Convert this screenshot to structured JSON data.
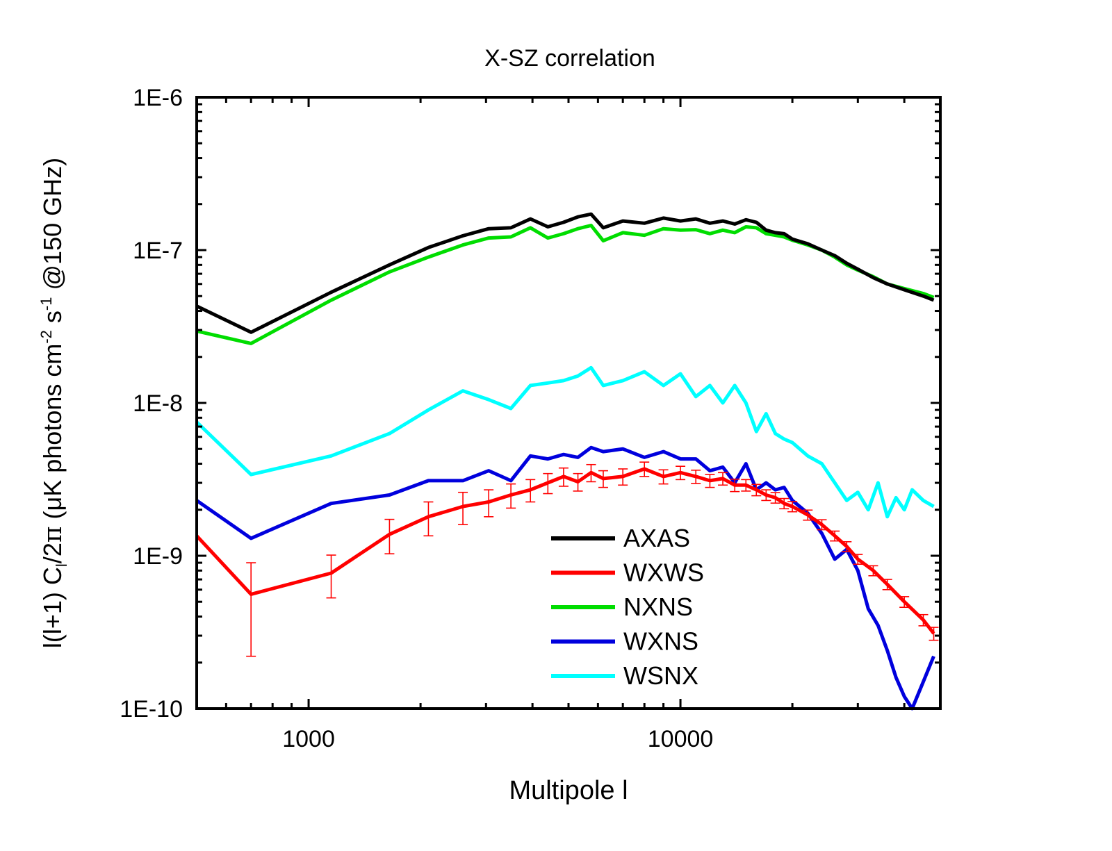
{
  "chart_data": {
    "type": "line",
    "title": "X-SZ correlation",
    "xlabel": "Multipole l",
    "ylabel": "l(l+1) C_l/2π (μK photons cm^-2 s^-1 @150 GHz)",
    "ylabel_parts": {
      "a": "l(l+1) C",
      "sub": "l",
      "b": "/2",
      "pi": "π",
      "c": " (μK photons cm",
      "sup1": "-2",
      "d": " s",
      "sup2": "-1",
      "e": " @150 GHz)"
    },
    "xscale": "log",
    "yscale": "log",
    "xlim": [
      500,
      50000
    ],
    "ylim": [
      1e-10,
      1e-06
    ],
    "x_ticks": [
      {
        "value": 1000,
        "label": "1000"
      },
      {
        "value": 10000,
        "label": "10000"
      }
    ],
    "y_ticks": [
      {
        "value": 1e-10,
        "label": "1E-10"
      },
      {
        "value": 1e-09,
        "label": "1E-9"
      },
      {
        "value": 1e-08,
        "label": "1E-8"
      },
      {
        "value": 1e-07,
        "label": "1E-7"
      },
      {
        "value": 1e-06,
        "label": "1E-6"
      }
    ],
    "legend_position": "lower-center",
    "series": [
      {
        "name": "AXAS",
        "color": "#000000",
        "x": [
          500,
          700,
          1150,
          1650,
          2100,
          2600,
          3050,
          3500,
          3950,
          4400,
          4850,
          5300,
          5750,
          6200,
          7000,
          8000,
          9000,
          10000,
          11000,
          12000,
          13000,
          14000,
          15000,
          16000,
          17000,
          18000,
          19000,
          20000,
          22000,
          24000,
          26000,
          28000,
          30000,
          33000,
          36000,
          40000,
          45000,
          48000
        ],
        "values": [
          4.3e-08,
          2.9e-08,
          5.3e-08,
          8e-08,
          1.04e-07,
          1.24e-07,
          1.38e-07,
          1.4e-07,
          1.6e-07,
          1.42e-07,
          1.52e-07,
          1.65e-07,
          1.72e-07,
          1.4e-07,
          1.55e-07,
          1.5e-07,
          1.62e-07,
          1.55e-07,
          1.6e-07,
          1.5e-07,
          1.55e-07,
          1.48e-07,
          1.58e-07,
          1.52e-07,
          1.35e-07,
          1.3e-07,
          1.28e-07,
          1.18e-07,
          1.1e-07,
          1e-07,
          9.2e-08,
          8.2e-08,
          7.5e-08,
          6.6e-08,
          6e-08,
          5.5e-08,
          5e-08,
          4.7e-08
        ]
      },
      {
        "name": "WXWS",
        "color": "#ff0000",
        "x": [
          500,
          700,
          1150,
          1650,
          2100,
          2600,
          3050,
          3500,
          3950,
          4400,
          4850,
          5300,
          5750,
          6200,
          7000,
          8000,
          9000,
          10000,
          11000,
          12000,
          13000,
          14000,
          15000,
          16000,
          17000,
          18000,
          19000,
          20000,
          22000,
          24000,
          26000,
          28000,
          30000,
          33000,
          36000,
          40000,
          45000,
          48000
        ],
        "values": [
          1.35e-09,
          5.6e-10,
          7.7e-10,
          1.38e-09,
          1.8e-09,
          2.1e-09,
          2.25e-09,
          2.5e-09,
          2.7e-09,
          3e-09,
          3.3e-09,
          3.05e-09,
          3.5e-09,
          3.2e-09,
          3.3e-09,
          3.7e-09,
          3.3e-09,
          3.5e-09,
          3.3e-09,
          3.1e-09,
          3.2e-09,
          2.9e-09,
          2.9e-09,
          2.7e-09,
          2.5e-09,
          2.4e-09,
          2.2e-09,
          2.1e-09,
          1.85e-09,
          1.6e-09,
          1.35e-09,
          1.15e-09,
          9.5e-10,
          8e-10,
          6.5e-10,
          5e-10,
          3.8e-10,
          3.1e-10
        ],
        "errors": [
          0,
          3.4e-10,
          2.4e-10,
          3.5e-10,
          4.5e-10,
          5e-10,
          4.5e-10,
          4.5e-10,
          4.5e-10,
          4.5e-10,
          4.5e-10,
          4e-10,
          4.5e-10,
          4e-10,
          4e-10,
          4e-10,
          3.5e-10,
          3.5e-10,
          3.3e-10,
          3e-10,
          3e-10,
          2.7e-10,
          2.5e-10,
          2.3e-10,
          2e-10,
          1.9e-10,
          1.7e-10,
          1.6e-10,
          1.4e-10,
          1.2e-10,
          1e-10,
          8.5e-11,
          7e-11,
          6e-11,
          5e-11,
          4e-11,
          3.2e-11,
          3e-11
        ]
      },
      {
        "name": "NXNS",
        "color": "#00dd00",
        "x": [
          500,
          700,
          1150,
          1650,
          2100,
          2600,
          3050,
          3500,
          3950,
          4400,
          4850,
          5300,
          5750,
          6200,
          7000,
          8000,
          9000,
          10000,
          11000,
          12000,
          13000,
          14000,
          15000,
          16000,
          17000,
          18000,
          19000,
          20000,
          22000,
          24000,
          26000,
          28000,
          30000,
          33000,
          36000,
          40000,
          45000,
          48000
        ],
        "values": [
          2.95e-08,
          2.45e-08,
          4.7e-08,
          7.2e-08,
          9e-08,
          1.08e-07,
          1.2e-07,
          1.22e-07,
          1.4e-07,
          1.2e-07,
          1.28e-07,
          1.38e-07,
          1.45e-07,
          1.15e-07,
          1.3e-07,
          1.25e-07,
          1.38e-07,
          1.35e-07,
          1.36e-07,
          1.28e-07,
          1.35e-07,
          1.3e-07,
          1.42e-07,
          1.4e-07,
          1.28e-07,
          1.25e-07,
          1.22e-07,
          1.16e-07,
          1.08e-07,
          1e-07,
          9e-08,
          8e-08,
          7.4e-08,
          6.7e-08,
          6e-08,
          5.6e-08,
          5.2e-08,
          4.9e-08
        ]
      },
      {
        "name": "WXNS",
        "color": "#0000dd",
        "x": [
          500,
          700,
          1150,
          1650,
          2100,
          2600,
          3050,
          3500,
          3950,
          4400,
          4850,
          5300,
          5750,
          6200,
          7000,
          8000,
          9000,
          10000,
          11000,
          12000,
          13000,
          14000,
          15000,
          16000,
          17000,
          18000,
          19000,
          20000,
          22000,
          24000,
          26000,
          28000,
          30000,
          32000,
          34000,
          36000,
          38000,
          40000,
          42000,
          45000,
          48000
        ],
        "values": [
          2.3e-09,
          1.3e-09,
          2.2e-09,
          2.5e-09,
          3.1e-09,
          3.1e-09,
          3.6e-09,
          3.1e-09,
          4.5e-09,
          4.3e-09,
          4.6e-09,
          4.4e-09,
          5.1e-09,
          4.8e-09,
          5e-09,
          4.4e-09,
          4.8e-09,
          4.3e-09,
          4.3e-09,
          3.6e-09,
          3.8e-09,
          3e-09,
          4e-09,
          2.7e-09,
          3e-09,
          2.7e-09,
          2.8e-09,
          2.3e-09,
          1.9e-09,
          1.4e-09,
          9.5e-10,
          1.1e-09,
          8e-10,
          4.5e-10,
          3.5e-10,
          2.4e-10,
          1.6e-10,
          1.2e-10,
          1e-10,
          1.5e-10,
          2.2e-10
        ]
      },
      {
        "name": "WSNX",
        "color": "#00ffff",
        "x": [
          500,
          700,
          1150,
          1650,
          2100,
          2600,
          3050,
          3500,
          3950,
          4400,
          4850,
          5300,
          5750,
          6200,
          7000,
          8000,
          9000,
          10000,
          11000,
          12000,
          13000,
          14000,
          15000,
          16000,
          17000,
          18000,
          19000,
          20000,
          22000,
          24000,
          26000,
          28000,
          30000,
          32000,
          34000,
          36000,
          38000,
          40000,
          42000,
          45000,
          48000
        ],
        "values": [
          7.5e-09,
          3.4e-09,
          4.5e-09,
          6.3e-09,
          9e-09,
          1.2e-08,
          1.05e-08,
          9.2e-09,
          1.3e-08,
          1.35e-08,
          1.4e-08,
          1.5e-08,
          1.7e-08,
          1.3e-08,
          1.4e-08,
          1.6e-08,
          1.3e-08,
          1.55e-08,
          1.1e-08,
          1.3e-08,
          1e-08,
          1.3e-08,
          1e-08,
          6.5e-09,
          8.5e-09,
          6.3e-09,
          5.8e-09,
          5.5e-09,
          4.5e-09,
          4e-09,
          3e-09,
          2.3e-09,
          2.6e-09,
          2e-09,
          3e-09,
          1.8e-09,
          2.4e-09,
          2e-09,
          2.7e-09,
          2.3e-09,
          2.1e-09
        ]
      }
    ]
  }
}
